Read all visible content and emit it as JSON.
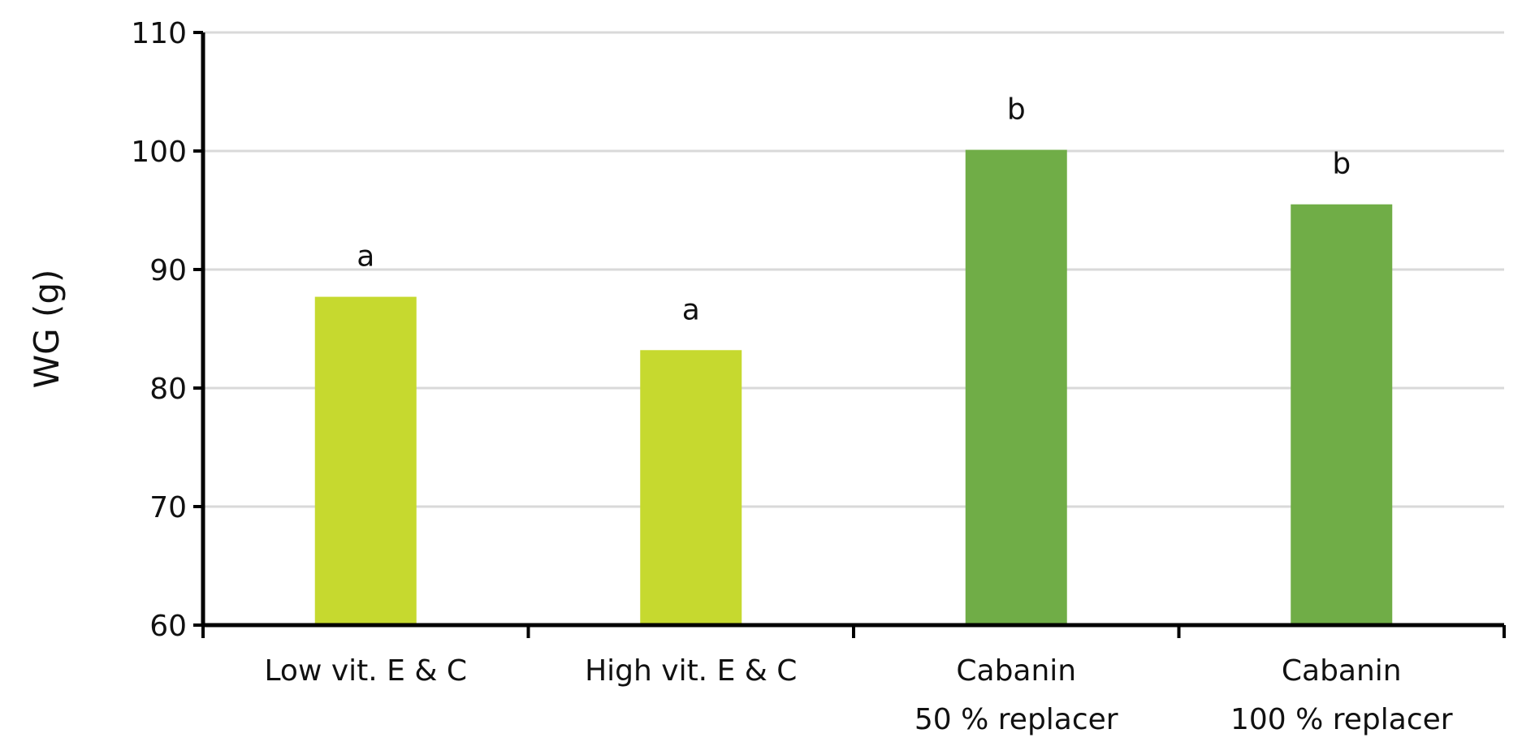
{
  "chart_data": {
    "type": "bar",
    "categories": [
      [
        "Low vit. E & C"
      ],
      [
        "High vit. E & C"
      ],
      [
        "Cabanin",
        "50 % replacer"
      ],
      [
        "Cabanin",
        "100 % replacer"
      ]
    ],
    "values": [
      87.7,
      83.2,
      100.1,
      95.5
    ],
    "data_labels": [
      "a",
      "a",
      "b",
      "b"
    ],
    "bar_colors": [
      "#c6d92f",
      "#c6d92f",
      "#70ad47",
      "#70ad47"
    ],
    "title": "",
    "xlabel": "",
    "ylabel": "WG (g)",
    "ylim": [
      60,
      110
    ],
    "yticks": [
      60,
      70,
      80,
      90,
      100,
      110
    ],
    "grid": true,
    "legend": "none"
  }
}
